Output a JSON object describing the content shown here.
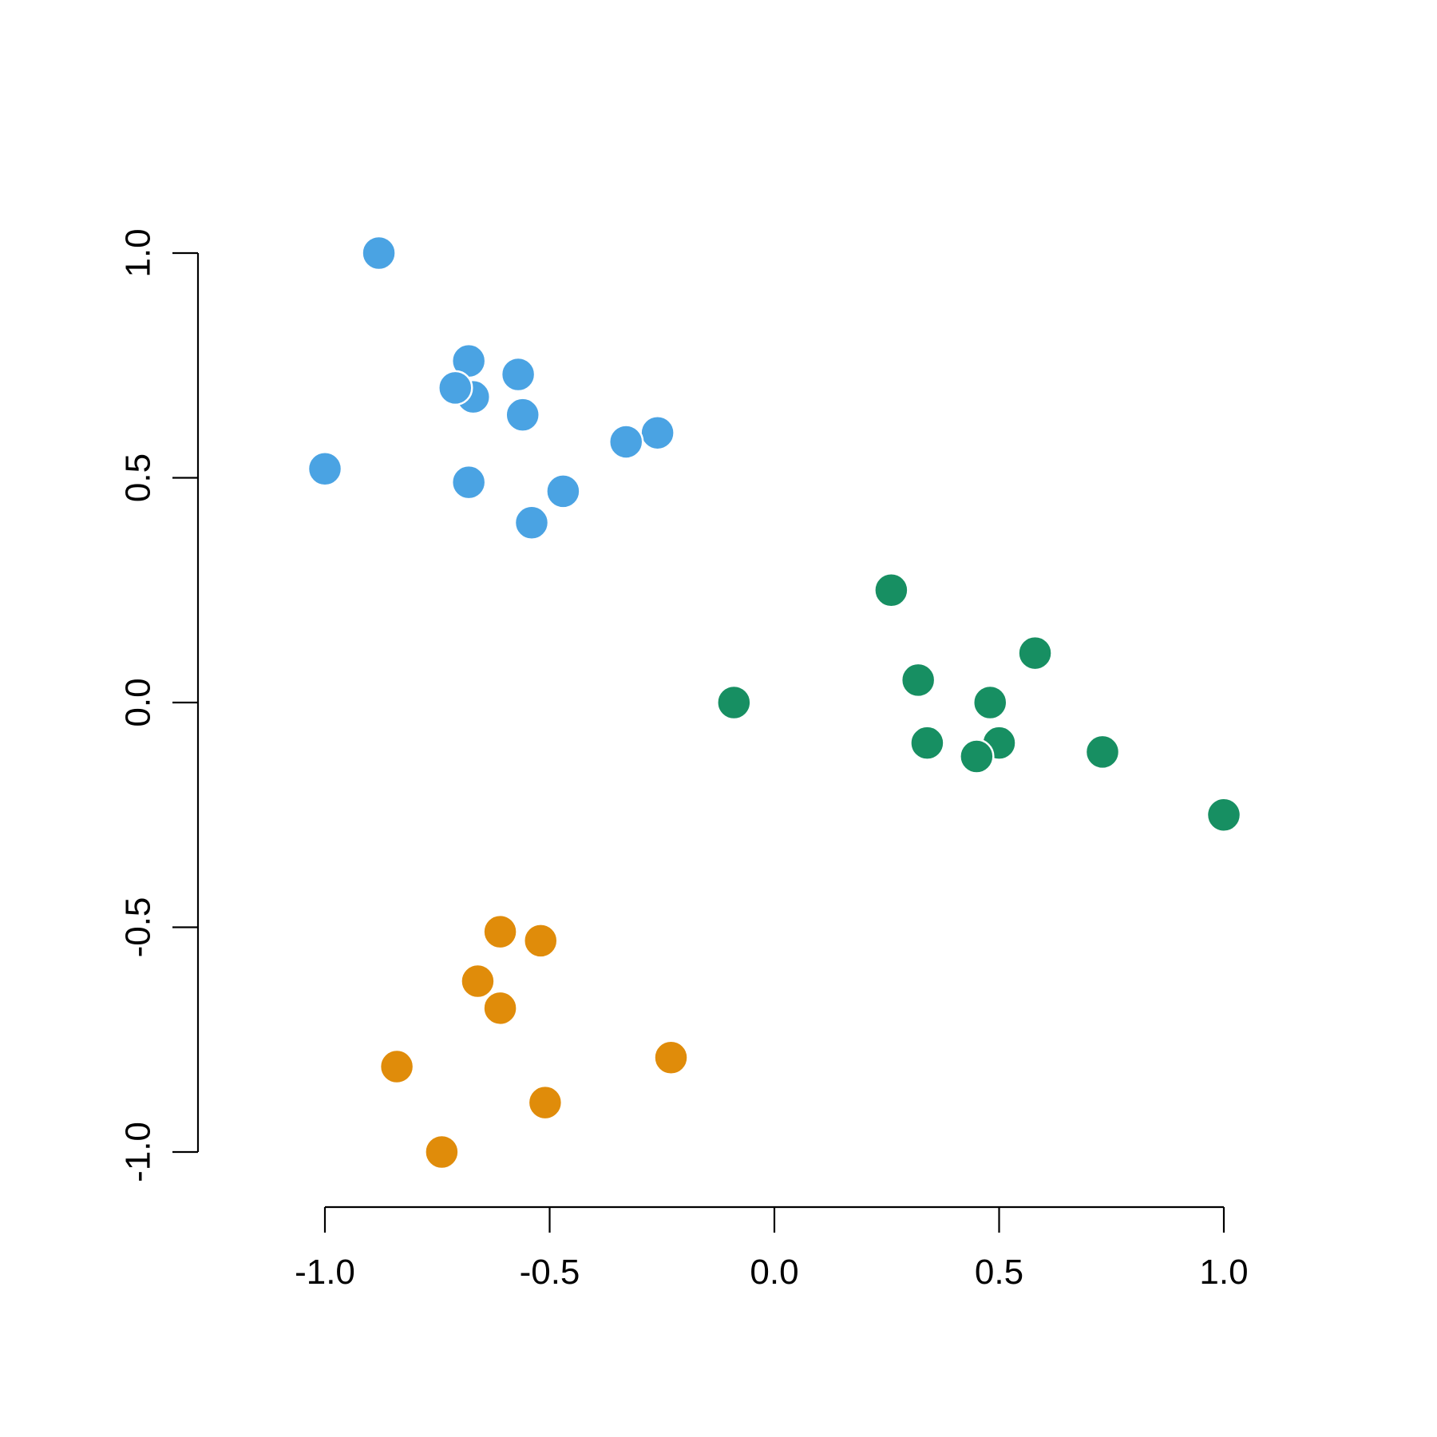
{
  "chart_data": {
    "type": "scatter",
    "title": "",
    "xlabel": "",
    "ylabel": "",
    "xlim": [
      -1.0,
      1.0
    ],
    "ylim": [
      -1.0,
      1.0
    ],
    "x_ticks": [
      -1.0,
      -0.5,
      0.0,
      0.5,
      1.0
    ],
    "x_tick_labels": [
      "-1.0",
      "-0.5",
      "0.0",
      "0.5",
      "1.0"
    ],
    "y_ticks": [
      -1.0,
      -0.5,
      0.0,
      0.5,
      1.0
    ],
    "y_tick_labels": [
      "-1.0",
      "-0.5",
      "0.0",
      "0.5",
      "1.0"
    ],
    "grid": false,
    "legend": "none",
    "series": [
      {
        "color": "#4aa3e3",
        "points": [
          {
            "x": -0.88,
            "y": 1.0
          },
          {
            "x": -1.0,
            "y": 0.52
          },
          {
            "x": -0.68,
            "y": 0.76
          },
          {
            "x": -0.57,
            "y": 0.73
          },
          {
            "x": -0.67,
            "y": 0.68
          },
          {
            "x": -0.71,
            "y": 0.7
          },
          {
            "x": -0.56,
            "y": 0.64
          },
          {
            "x": -0.26,
            "y": 0.6
          },
          {
            "x": -0.33,
            "y": 0.58
          },
          {
            "x": -0.68,
            "y": 0.49
          },
          {
            "x": -0.47,
            "y": 0.47
          },
          {
            "x": -0.54,
            "y": 0.4
          }
        ]
      },
      {
        "color": "#178f62",
        "points": [
          {
            "x": 0.26,
            "y": 0.25
          },
          {
            "x": 0.58,
            "y": 0.11
          },
          {
            "x": 0.32,
            "y": 0.05
          },
          {
            "x": -0.09,
            "y": 0.0
          },
          {
            "x": 0.48,
            "y": 0.0
          },
          {
            "x": 0.34,
            "y": -0.09
          },
          {
            "x": 0.5,
            "y": -0.09
          },
          {
            "x": 0.45,
            "y": -0.12
          },
          {
            "x": 0.73,
            "y": -0.11
          },
          {
            "x": 1.0,
            "y": -0.25
          }
        ]
      },
      {
        "color": "#e08c0a",
        "points": [
          {
            "x": -0.61,
            "y": -0.51
          },
          {
            "x": -0.52,
            "y": -0.53
          },
          {
            "x": -0.66,
            "y": -0.62
          },
          {
            "x": -0.61,
            "y": -0.68
          },
          {
            "x": -0.84,
            "y": -0.81
          },
          {
            "x": -0.23,
            "y": -0.79
          },
          {
            "x": -0.51,
            "y": -0.89
          },
          {
            "x": -0.74,
            "y": -1.0
          }
        ]
      }
    ]
  }
}
